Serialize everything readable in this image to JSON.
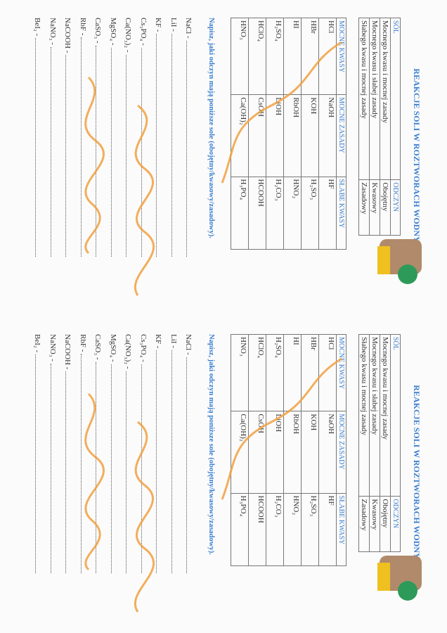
{
  "title": "REAKCJE SOLI W ROZTWORACH WODNYCH",
  "salt_table": {
    "headers": [
      "SÓL",
      "ODCZYN"
    ],
    "rows": [
      [
        "Mocnego kwasu i mocnej zasady",
        "Obojętny"
      ],
      [
        "Mocnego kwasu i słabej zasady",
        "Kwasowy"
      ],
      [
        "Słabego kwasu i mocnej zasady",
        "Zasadowy"
      ]
    ]
  },
  "acid_table": {
    "headers": [
      "MOCNE KWASY",
      "MOCNE ZASADY",
      "SŁABE KWASY"
    ],
    "rows": [
      [
        "HCl",
        "NaOH",
        "HF"
      ],
      [
        "HBr",
        "KOH",
        "H₂SO₃"
      ],
      [
        "HI",
        "RbOH",
        "HNO₂"
      ],
      [
        "H₂SO₄",
        "LiOH",
        "H₂CO₃"
      ],
      [
        "HClO₄",
        "CsOH",
        "HCOOH"
      ],
      [
        "HNO₃",
        "Ca(OH)₂",
        "H₃PO₄"
      ]
    ]
  },
  "instruction": "Napisz, jaki odczyn mają poniższe sole (obojętny/kwasowy/zasadowy).",
  "salts": [
    "NaCl -",
    "LiI -",
    "KF -",
    "Cs₃PO₄ -",
    "Ca(NO₃)₂ -",
    "MgSO₄ -",
    "CaSO₃ -",
    "RbF -",
    "NaCOOH -",
    "NaNO₃ -",
    "BeI₂ -"
  ],
  "colors": {
    "heading": "#3b7fd0",
    "handwriting": "#f0a040"
  }
}
